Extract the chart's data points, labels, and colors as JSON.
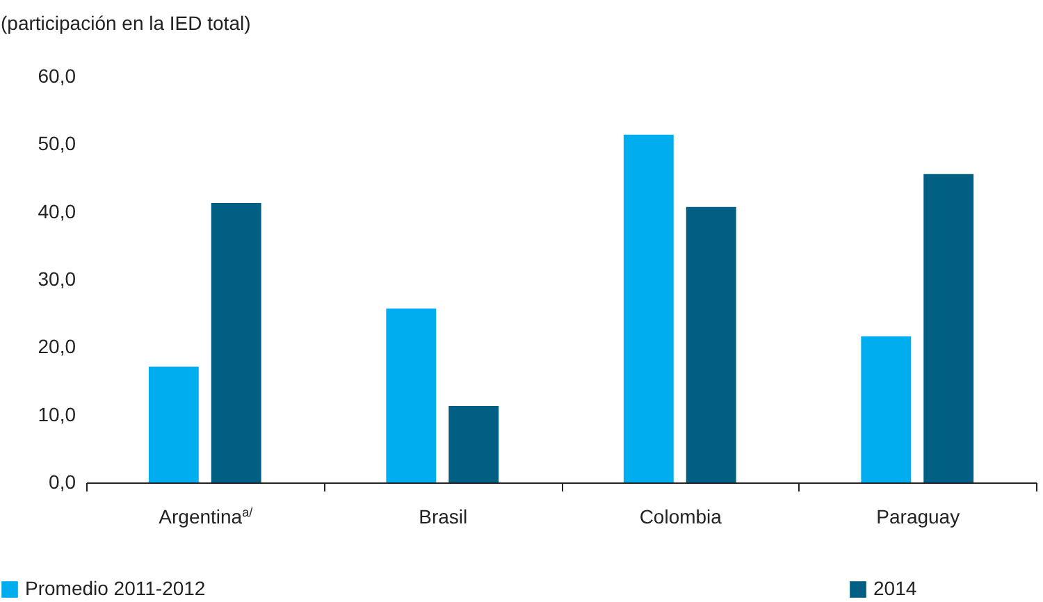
{
  "chart_data": {
    "type": "bar",
    "ylabel": "(participación en la IED total)",
    "categories": [
      "Argentina$^{a/}$",
      "Brasil",
      "Colombia",
      "Paraguay"
    ],
    "series": [
      {
        "name": "Promedio 2011-2012",
        "color": "#00aeef",
        "values": [
          17.1,
          25.7,
          51.4,
          21.6
        ]
      },
      {
        "name": "2014",
        "color": "#005f83",
        "values": [
          41.3,
          11.3,
          40.7,
          45.6
        ]
      }
    ],
    "ylim": [
      0,
      60
    ],
    "yticks": [
      {
        "value": 0,
        "label": "0,0"
      },
      {
        "value": 10,
        "label": "10,0"
      },
      {
        "value": 20,
        "label": "20,0"
      },
      {
        "value": 30,
        "label": "30,0"
      },
      {
        "value": 40,
        "label": "40,0"
      },
      {
        "value": 50,
        "label": "50,0"
      },
      {
        "value": 60,
        "label": "60,0"
      }
    ],
    "grid": false,
    "legend": "bottom"
  }
}
